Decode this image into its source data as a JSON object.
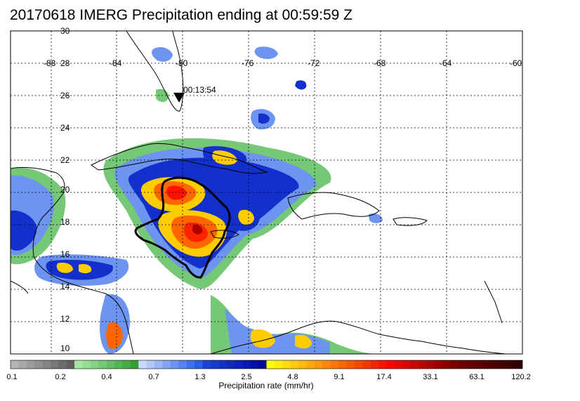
{
  "title": "20170618 IMERG Precipitation ending at 00:59:59 Z",
  "map": {
    "lat_labels": [
      "30",
      "28",
      "26",
      "24",
      "22",
      "20",
      "18",
      "16",
      "14",
      "12",
      "10"
    ],
    "lon_labels": [
      "-88",
      "-84",
      "-80",
      "-76",
      "-72",
      "-68",
      "-64",
      "-60"
    ],
    "storm_marker": {
      "time_label": "00:13:54",
      "lat": 25.8,
      "lon": -80.2
    }
  },
  "colorbar": {
    "title": "Precipitation rate (mm/hr)",
    "tick_labels": [
      "0.1",
      "0.2",
      "0.4",
      "0.7",
      "1.3",
      "2.5",
      "4.8",
      "9.1",
      "17.4",
      "33.1",
      "63.1",
      "120.2"
    ],
    "colors": [
      "#b5b5b5",
      "#a8a8a8",
      "#9c9c9c",
      "#909090",
      "#848484",
      "#787878",
      "#6c6c6c",
      "#606060",
      "#a5e6a5",
      "#95dc95",
      "#85d285",
      "#75c875",
      "#65be65",
      "#55b455",
      "#45aa45",
      "#359f35",
      "#c9d8fb",
      "#b2c7f8",
      "#9bb6f5",
      "#84a5f2",
      "#6d94ef",
      "#5683ec",
      "#3f72e9",
      "#2861e6",
      "#1a42e0",
      "#1838d6",
      "#1430cc",
      "#1128c2",
      "#0e20b8",
      "#0b18ae",
      "#0810a4",
      "#05089a",
      "#ffff00",
      "#ffee00",
      "#ffdd00",
      "#ffcc00",
      "#ffbb00",
      "#ffaa00",
      "#ff9900",
      "#ff8800",
      "#ff7700",
      "#ff6600",
      "#ff5500",
      "#ff4400",
      "#ff3300",
      "#ff2200",
      "#ff1100",
      "#ff0000",
      "#ee0000",
      "#dd0000",
      "#cc0000",
      "#bb0000",
      "#aa0000",
      "#990000",
      "#880000",
      "#770000",
      "#6a0000",
      "#620000",
      "#5a0000",
      "#520000",
      "#4a0000",
      "#420000",
      "#3a0000",
      "#320000"
    ]
  }
}
